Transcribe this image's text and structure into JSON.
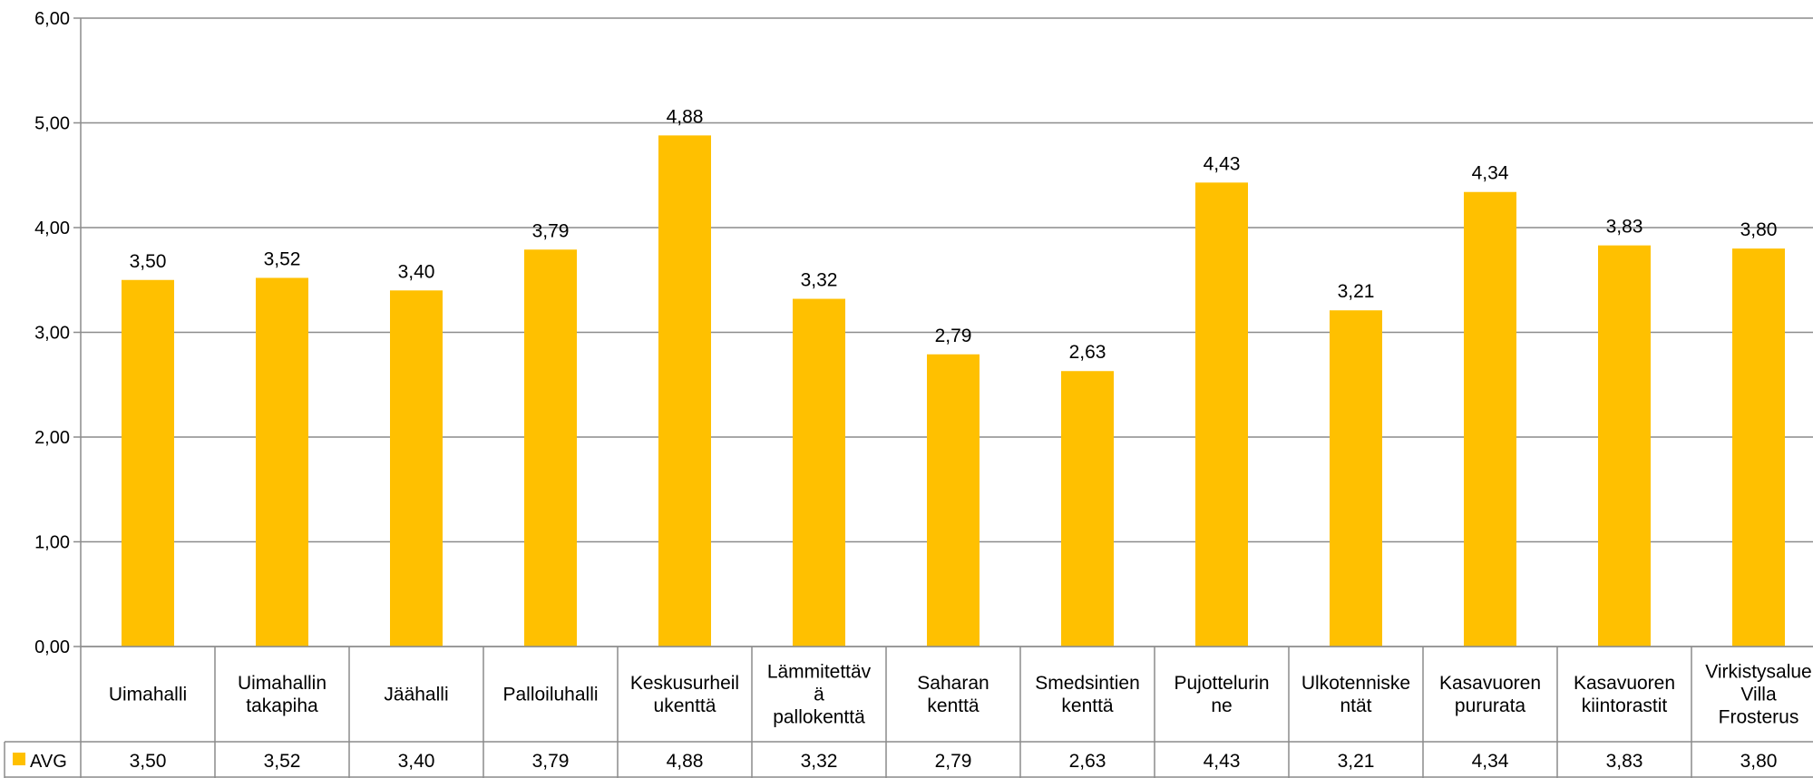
{
  "chart_data": {
    "type": "bar",
    "title": "",
    "xlabel": "",
    "ylabel": "",
    "ylim": [
      0,
      6
    ],
    "yticks": [
      "0,00",
      "1,00",
      "2,00",
      "3,00",
      "4,00",
      "5,00",
      "6,00"
    ],
    "grid": true,
    "legend": "data-table-left",
    "categories": [
      [
        "Uimahalli"
      ],
      [
        "Uimahallin",
        "takapiha"
      ],
      [
        "Jäähalli"
      ],
      [
        "Palloiluhalli"
      ],
      [
        "Keskusurheil",
        "ukenttä"
      ],
      [
        "Lämmitettäv",
        "ä",
        "pallokenttä"
      ],
      [
        "Saharan",
        "kenttä"
      ],
      [
        "Smedsintien",
        "kenttä"
      ],
      [
        "Pujottelurin",
        "ne"
      ],
      [
        "Ulkotenniske",
        "ntät"
      ],
      [
        "Kasavuoren",
        "pururata"
      ],
      [
        "Kasavuoren",
        "kiintorastit"
      ],
      [
        "Virkistysalue",
        "Villa",
        "Frosterus"
      ]
    ],
    "series": [
      {
        "name": "AVG",
        "color": "#FFC000",
        "values": [
          3.5,
          3.52,
          3.4,
          3.79,
          4.88,
          3.32,
          2.79,
          2.63,
          4.43,
          3.21,
          4.34,
          3.83,
          3.8
        ],
        "labels": [
          "3,50",
          "3,52",
          "3,40",
          "3,79",
          "4,88",
          "3,32",
          "2,79",
          "2,63",
          "4,43",
          "3,21",
          "4,34",
          "3,83",
          "3,80"
        ]
      }
    ]
  }
}
